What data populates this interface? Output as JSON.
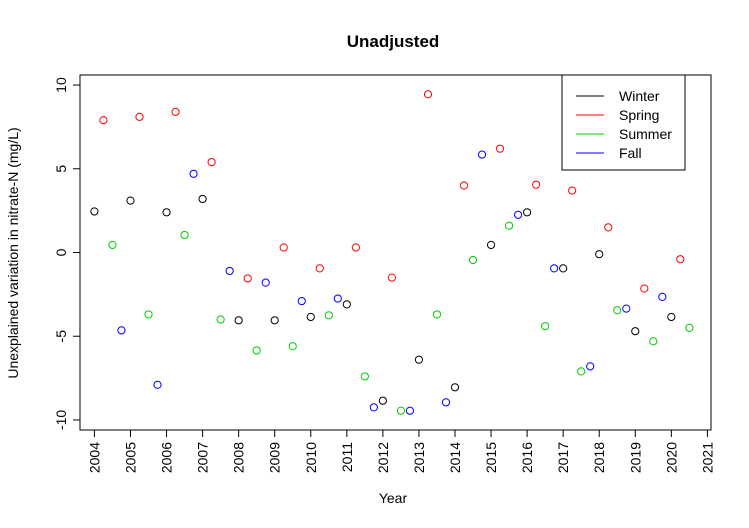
{
  "chart_data": {
    "type": "scatter",
    "title": "Unadjusted",
    "xlabel": "Year",
    "ylabel": "Unexplained variation in nitrate-N (mg/L)",
    "xlim": [
      2003.6,
      2021.1
    ],
    "ylim": [
      -10.6,
      10.6
    ],
    "x_ticks": [
      2004,
      2005,
      2006,
      2007,
      2008,
      2009,
      2010,
      2011,
      2012,
      2013,
      2014,
      2015,
      2016,
      2017,
      2018,
      2019,
      2020,
      2021
    ],
    "y_ticks": [
      -10,
      -5,
      0,
      5,
      10
    ],
    "legend_position": "top-right",
    "grid": false,
    "series": [
      {
        "name": "Winter",
        "color": "#000000",
        "points": [
          [
            2004.0,
            2.45
          ],
          [
            2005.0,
            3.1
          ],
          [
            2006.0,
            2.4
          ],
          [
            2007.0,
            3.2
          ],
          [
            2008.0,
            -4.05
          ],
          [
            2009.0,
            -4.05
          ],
          [
            2010.0,
            -3.85
          ],
          [
            2011.0,
            -3.1
          ],
          [
            2012.0,
            -8.85
          ],
          [
            2013.0,
            -6.4
          ],
          [
            2014.0,
            -8.05
          ],
          [
            2015.0,
            0.45
          ],
          [
            2016.0,
            2.4
          ],
          [
            2017.0,
            -0.95
          ],
          [
            2018.0,
            -0.1
          ],
          [
            2019.0,
            -4.7
          ],
          [
            2020.0,
            -3.85
          ]
        ]
      },
      {
        "name": "Spring",
        "color": "#ff0000",
        "points": [
          [
            2004.25,
            7.9
          ],
          [
            2005.25,
            8.1
          ],
          [
            2006.25,
            8.4
          ],
          [
            2007.25,
            5.4
          ],
          [
            2008.25,
            -1.55
          ],
          [
            2009.25,
            0.3
          ],
          [
            2010.25,
            -0.95
          ],
          [
            2011.25,
            0.3
          ],
          [
            2012.25,
            -1.5
          ],
          [
            2013.25,
            9.45
          ],
          [
            2014.25,
            4.0
          ],
          [
            2015.25,
            6.2
          ],
          [
            2016.25,
            4.05
          ],
          [
            2017.25,
            3.7
          ],
          [
            2018.25,
            1.5
          ],
          [
            2019.25,
            -2.15
          ],
          [
            2020.25,
            -0.4
          ]
        ]
      },
      {
        "name": "Summer",
        "color": "#00cc00",
        "points": [
          [
            2004.5,
            0.45
          ],
          [
            2005.5,
            -3.7
          ],
          [
            2006.5,
            1.05
          ],
          [
            2007.5,
            -4.0
          ],
          [
            2008.5,
            -5.85
          ],
          [
            2009.5,
            -5.6
          ],
          [
            2010.5,
            -3.75
          ],
          [
            2011.5,
            -7.4
          ],
          [
            2012.5,
            -9.45
          ],
          [
            2013.5,
            -3.7
          ],
          [
            2014.5,
            -0.45
          ],
          [
            2015.5,
            1.6
          ],
          [
            2016.5,
            -4.4
          ],
          [
            2017.5,
            -7.1
          ],
          [
            2018.5,
            -3.45
          ],
          [
            2019.5,
            -5.3
          ],
          [
            2020.5,
            -4.5
          ]
        ]
      },
      {
        "name": "Fall",
        "color": "#0000ff",
        "points": [
          [
            2004.75,
            -4.65
          ],
          [
            2005.75,
            -7.9
          ],
          [
            2006.75,
            4.7
          ],
          [
            2007.75,
            -1.1
          ],
          [
            2008.75,
            -1.8
          ],
          [
            2009.75,
            -2.9
          ],
          [
            2010.75,
            -2.75
          ],
          [
            2011.75,
            -9.25
          ],
          [
            2012.75,
            -9.45
          ],
          [
            2013.75,
            -8.95
          ],
          [
            2014.75,
            5.85
          ],
          [
            2015.75,
            2.25
          ],
          [
            2016.75,
            -0.95
          ],
          [
            2017.75,
            -6.8
          ],
          [
            2018.75,
            -3.35
          ],
          [
            2019.75,
            -2.65
          ]
        ]
      }
    ]
  }
}
